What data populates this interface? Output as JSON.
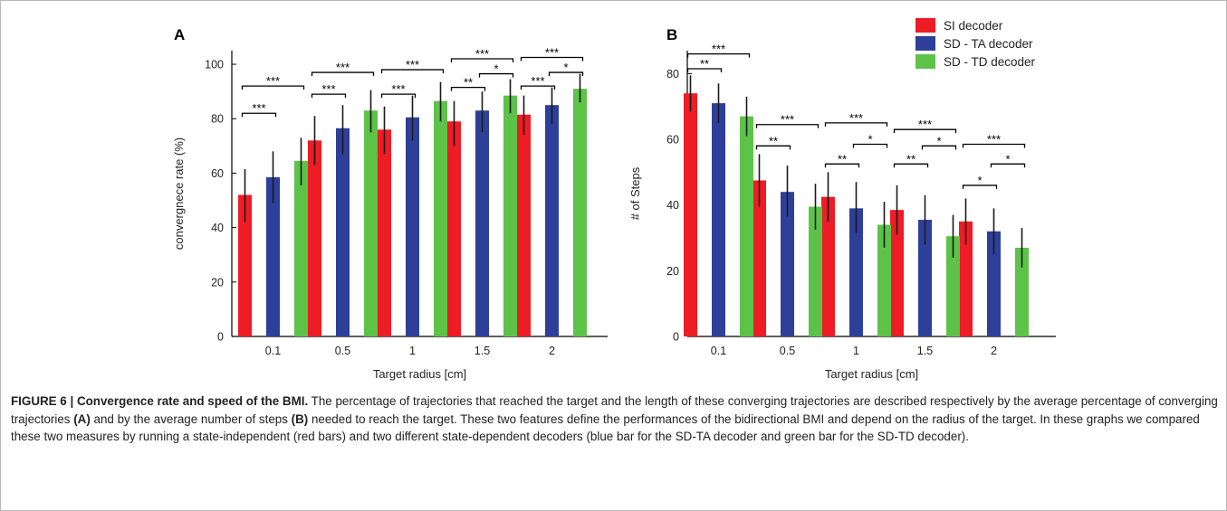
{
  "colors": {
    "si": "#ee1c25",
    "sd_ta": "#2e3f9a",
    "sd_td": "#5cc348",
    "axis": "#000000",
    "error_bar": "#1a1a1a"
  },
  "legend": {
    "placement": "top-right of panel B",
    "entries": [
      "SI decoder",
      "SD - TA decoder",
      "SD - TD decoder"
    ]
  },
  "caption": {
    "title": "FIGURE 6 | Convergence rate and speed of the BMI.",
    "text_1": " The percentage of trajectories that reached the target and the length of these converging trajectories are described respectively by the average percentage of converging trajectories ",
    "ref_a": "(A)",
    "text_2": " and by the average number of steps ",
    "ref_b": "(B)",
    "text_3": " needed to reach the target. These two features define the performances of the bidirectional BMI and depend on the radius of the target. In these graphs we compared these two measures by running a state-independent (red bars) and two different state-dependent decoders (blue bar for the SD-TA decoder and green bar for the SD-TD decoder)."
  },
  "chart_data": [
    {
      "panel_label": "A",
      "type": "bar",
      "xlabel": "Target radius [cm]",
      "ylabel": "convergnece rate (%)",
      "ylim": [
        0,
        105
      ],
      "yticks": [
        0,
        20,
        40,
        60,
        80,
        100
      ],
      "categories": [
        "0.1",
        "0.5",
        "1",
        "1.5",
        "2"
      ],
      "grid": false,
      "series": [
        {
          "name": "SI decoder",
          "values": [
            52,
            72,
            76,
            79,
            81.5
          ],
          "err_low": [
            42,
            63,
            67,
            70,
            74
          ],
          "err_high": [
            61.5,
            81,
            84.5,
            86.5,
            88.5
          ]
        },
        {
          "name": "SD - TA decoder",
          "values": [
            58.5,
            76.5,
            80.5,
            83,
            85
          ],
          "err_low": [
            49,
            67,
            72,
            75,
            78
          ],
          "err_high": [
            68,
            85,
            88.5,
            90,
            91.5
          ]
        },
        {
          "name": "SD - TD decoder",
          "values": [
            64.5,
            83,
            86.5,
            88.5,
            91
          ],
          "err_low": [
            55.5,
            75,
            79,
            82,
            86
          ],
          "err_high": [
            73,
            90.5,
            93.5,
            94.5,
            96.5
          ]
        }
      ],
      "significance": [
        {
          "category": 0,
          "from": 0,
          "to": 1,
          "y": 82,
          "label": "***"
        },
        {
          "category": 0,
          "from": 0,
          "to": 2,
          "y": 92,
          "label": "***"
        },
        {
          "category": 1,
          "from": 0,
          "to": 1,
          "y": 89,
          "label": "***"
        },
        {
          "category": 1,
          "from": 0,
          "to": 2,
          "y": 97,
          "label": "***"
        },
        {
          "category": 2,
          "from": 0,
          "to": 1,
          "y": 89,
          "label": "***"
        },
        {
          "category": 2,
          "from": 0,
          "to": 2,
          "y": 98,
          "label": "***"
        },
        {
          "category": 3,
          "from": 0,
          "to": 1,
          "y": 91.5,
          "label": "**"
        },
        {
          "category": 3,
          "from": 1,
          "to": 2,
          "y": 96.5,
          "label": "*"
        },
        {
          "category": 3,
          "from": 0,
          "to": 2,
          "y": 102,
          "label": "***"
        },
        {
          "category": 4,
          "from": 0,
          "to": 1,
          "y": 92,
          "label": "***"
        },
        {
          "category": 4,
          "from": 1,
          "to": 2,
          "y": 97,
          "label": "*"
        },
        {
          "category": 4,
          "from": 0,
          "to": 2,
          "y": 102.5,
          "label": "***"
        }
      ]
    },
    {
      "panel_label": "B",
      "type": "bar",
      "xlabel": "Target radius [cm]",
      "ylabel": "# of Steps",
      "ylim": [
        0,
        87
      ],
      "yticks": [
        0,
        20,
        40,
        60,
        80
      ],
      "categories": [
        "0.1",
        "0.5",
        "1",
        "1.5",
        "2"
      ],
      "grid": false,
      "series": [
        {
          "name": "SI decoder",
          "values": [
            74,
            47.5,
            42.5,
            38.5,
            35
          ],
          "err_low": [
            68.5,
            39.5,
            35,
            31,
            28
          ],
          "err_high": [
            79.5,
            55.5,
            50,
            46,
            42
          ]
        },
        {
          "name": "SD - TA decoder",
          "values": [
            71,
            44,
            39,
            35.5,
            32
          ],
          "err_low": [
            65,
            36.5,
            31.5,
            28,
            25
          ],
          "err_high": [
            77,
            52,
            47,
            43,
            39
          ]
        },
        {
          "name": "SD - TD decoder",
          "values": [
            67,
            39.5,
            34,
            30.5,
            27
          ],
          "err_low": [
            61,
            32.5,
            27,
            24,
            21
          ],
          "err_high": [
            73,
            46.5,
            41,
            37,
            33
          ]
        }
      ],
      "significance": [
        {
          "category": 0,
          "from": 0,
          "to": 1,
          "y": 81.5,
          "label": "**"
        },
        {
          "category": 0,
          "from": 0,
          "to": 2,
          "y": 86,
          "label": "***"
        },
        {
          "category": 1,
          "from": 0,
          "to": 1,
          "y": 58,
          "label": "**"
        },
        {
          "category": 1,
          "from": 0,
          "to": 2,
          "y": 64.5,
          "label": "***"
        },
        {
          "category": 2,
          "from": 0,
          "to": 1,
          "y": 52.5,
          "label": "**"
        },
        {
          "category": 2,
          "from": 1,
          "to": 2,
          "y": 58.5,
          "label": "*"
        },
        {
          "category": 2,
          "from": 0,
          "to": 2,
          "y": 65,
          "label": "***"
        },
        {
          "category": 3,
          "from": 0,
          "to": 1,
          "y": 52.5,
          "label": "**"
        },
        {
          "category": 3,
          "from": 1,
          "to": 2,
          "y": 58,
          "label": "*"
        },
        {
          "category": 3,
          "from": 0,
          "to": 2,
          "y": 63,
          "label": "***"
        },
        {
          "category": 4,
          "from": 0,
          "to": 1,
          "y": 46,
          "label": "*"
        },
        {
          "category": 4,
          "from": 1,
          "to": 2,
          "y": 52.5,
          "label": "*"
        },
        {
          "category": 4,
          "from": 0,
          "to": 2,
          "y": 58.5,
          "label": "***"
        }
      ]
    }
  ]
}
